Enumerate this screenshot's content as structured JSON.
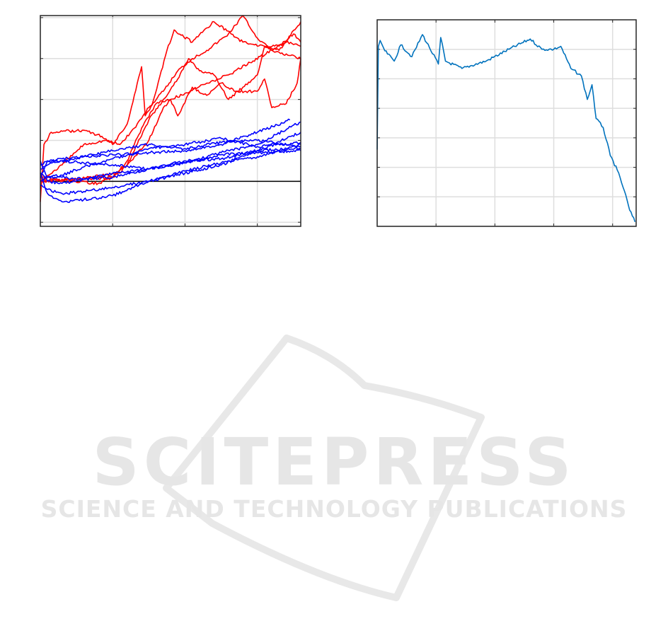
{
  "watermark": {
    "title": "SCITEPRESS",
    "subtitle": "SCIENCE AND TECHNOLOGY PUBLICATIONS",
    "color": "#e6e6e6"
  },
  "chart_data": [
    {
      "type": "line",
      "grid": true,
      "xlim": [
        0,
        3.6
      ],
      "ylim": [
        -1.1,
        4.05
      ],
      "xticks": [
        0,
        1,
        2,
        3
      ],
      "yticks": [
        -1,
        0,
        1,
        2,
        3,
        4
      ],
      "reference_line": {
        "y": 0,
        "color": "#000000"
      },
      "series": [
        {
          "color": "#ff0000",
          "x": [
            0,
            0.05,
            0.15,
            0.6,
            0.85,
            1.0,
            1.2,
            1.4,
            1.45,
            1.55,
            1.75,
            1.85,
            2.1,
            2.4,
            2.8,
            3.1,
            3.3,
            3.6
          ],
          "y": [
            -0.5,
            0.9,
            1.2,
            1.25,
            1.1,
            0.9,
            1.4,
            2.8,
            1.6,
            1.9,
            3.2,
            3.7,
            3.4,
            3.9,
            3.4,
            3.3,
            3.2,
            3.9
          ]
        },
        {
          "color": "#ff0000",
          "x": [
            0,
            0.3,
            0.6,
            0.9,
            1.1,
            1.3,
            1.5,
            1.7,
            1.9,
            2.1,
            2.3,
            2.6,
            2.8,
            3.0,
            3.2,
            3.4,
            3.6
          ],
          "y": [
            0,
            0.4,
            0.9,
            1.0,
            0.9,
            1.3,
            1.8,
            2.2,
            2.7,
            3.0,
            3.2,
            3.6,
            4.05,
            3.5,
            3.2,
            3.4,
            3.3
          ]
        },
        {
          "color": "#ff0000",
          "x": [
            0,
            0.4,
            0.8,
            1.0,
            1.2,
            1.4,
            1.6,
            1.8,
            2.0,
            2.3,
            2.6,
            2.9,
            3.2,
            3.6
          ],
          "y": [
            0.1,
            0,
            -0.05,
            0.1,
            0.5,
            1.3,
            1.9,
            2.0,
            2.15,
            2.4,
            2.6,
            2.9,
            3.2,
            3.0
          ]
        },
        {
          "color": "#ff0000",
          "x": [
            0,
            0.5,
            1.0,
            1.2,
            1.5,
            1.7,
            1.9,
            2.05,
            2.2,
            2.4,
            2.6,
            2.8,
            3.0,
            3.1,
            3.3,
            3.5,
            3.6
          ],
          "y": [
            0,
            0.05,
            0.1,
            0.4,
            1.5,
            2.0,
            2.5,
            3.0,
            2.7,
            2.6,
            2.0,
            2.3,
            2.6,
            3.3,
            3.3,
            3.6,
            3.4
          ]
        },
        {
          "color": "#ff0000",
          "x": [
            0,
            0.5,
            1.1,
            1.5,
            1.7,
            1.8,
            1.9,
            2.1,
            2.3,
            2.5,
            2.7,
            3.0,
            3.1,
            3.2,
            3.4,
            3.55,
            3.6
          ],
          "y": [
            0,
            0.05,
            0.2,
            1.0,
            1.8,
            2.0,
            1.6,
            2.3,
            2.1,
            2.4,
            2.2,
            2.2,
            2.5,
            1.8,
            1.9,
            2.4,
            3.0
          ]
        },
        {
          "color": "#0000ff",
          "x": [
            0,
            0.1,
            0.3,
            0.6,
            1.0,
            1.5,
            2.0,
            2.5,
            3.0,
            3.45
          ],
          "y": [
            0.4,
            0.5,
            0.55,
            0.6,
            0.65,
            0.7,
            0.75,
            0.9,
            1.2,
            1.5
          ]
        },
        {
          "color": "#0000ff",
          "x": [
            0,
            0.1,
            0.3,
            0.6,
            1.0,
            1.5,
            2.0,
            2.5,
            3.0,
            3.6
          ],
          "y": [
            0.5,
            0.1,
            0.1,
            0.05,
            0.1,
            0.3,
            0.45,
            0.7,
            0.9,
            1.45
          ]
        },
        {
          "color": "#0000ff",
          "x": [
            0,
            0.1,
            0.3,
            0.6,
            1.0,
            1.5,
            2.0,
            2.5,
            3.0,
            3.6
          ],
          "y": [
            -0.1,
            -0.2,
            -0.3,
            -0.25,
            -0.15,
            0.0,
            0.25,
            0.45,
            0.6,
            0.9
          ]
        },
        {
          "color": "#0000ff",
          "x": [
            0,
            0.1,
            0.3,
            0.6,
            1.0,
            1.5,
            2.0,
            2.5,
            3.0,
            3.6
          ],
          "y": [
            0.2,
            -0.3,
            -0.5,
            -0.45,
            -0.35,
            0.0,
            0.2,
            0.4,
            0.75,
            1.2
          ]
        },
        {
          "color": "#0000ff",
          "x": [
            0,
            0.1,
            0.3,
            0.6,
            1.0,
            1.5,
            2.0,
            2.5,
            3.0,
            3.6
          ],
          "y": [
            0.3,
            0.4,
            0.5,
            0.6,
            0.75,
            0.9,
            0.8,
            0.95,
            1.0,
            0.85
          ]
        },
        {
          "color": "#0000ff",
          "x": [
            0,
            0.1,
            0.3,
            0.6,
            1.0,
            1.5,
            2.0,
            2.5,
            3.0,
            3.6
          ],
          "y": [
            0.2,
            0.0,
            -0.05,
            0.05,
            0.2,
            0.3,
            0.5,
            0.55,
            0.75,
            0.8
          ]
        },
        {
          "color": "#0000ff",
          "x": [
            0,
            0.1,
            0.3,
            0.6,
            1.0,
            1.5,
            2.0,
            2.5,
            3.0,
            3.6
          ],
          "y": [
            0.1,
            0.5,
            0.5,
            0.45,
            0.4,
            0.3,
            0.45,
            0.65,
            0.7,
            0.75
          ]
        },
        {
          "color": "#0000ff",
          "x": [
            0,
            0.1,
            0.3,
            0.6,
            1.0,
            1.5,
            2.0,
            2.5,
            3.0,
            3.6
          ],
          "y": [
            0.0,
            0.1,
            0.15,
            0.35,
            0.55,
            0.8,
            0.9,
            1.05,
            0.85,
            0.95
          ]
        }
      ]
    },
    {
      "type": "line",
      "grid": true,
      "xlim": [
        0,
        4.4
      ],
      "ylim": [
        0,
        7
      ],
      "xticks": [
        0,
        1,
        2,
        3,
        4
      ],
      "yticks": [
        0,
        1,
        2,
        3,
        4,
        5,
        6
      ],
      "series": [
        {
          "color": "#0072bd",
          "x": [
            0,
            0.02,
            0.05,
            0.13,
            0.29,
            0.4,
            0.59,
            0.77,
            0.89,
            1.04,
            1.08,
            1.16,
            1.44,
            1.85,
            2.24,
            2.6,
            2.8,
            3.0,
            3.12,
            3.29,
            3.47,
            3.57,
            3.65,
            3.72,
            3.84,
            3.96,
            4.08,
            4.2,
            4.29,
            4.38
          ],
          "y": [
            2.6,
            6.1,
            6.3,
            5.95,
            5.6,
            6.15,
            5.75,
            6.5,
            6.05,
            5.5,
            6.4,
            5.6,
            5.35,
            5.6,
            6.0,
            6.35,
            6.0,
            6.0,
            6.1,
            5.35,
            5.1,
            4.3,
            4.8,
            3.65,
            3.35,
            2.4,
            1.9,
            1.2,
            0.55,
            0.15
          ]
        }
      ]
    }
  ]
}
